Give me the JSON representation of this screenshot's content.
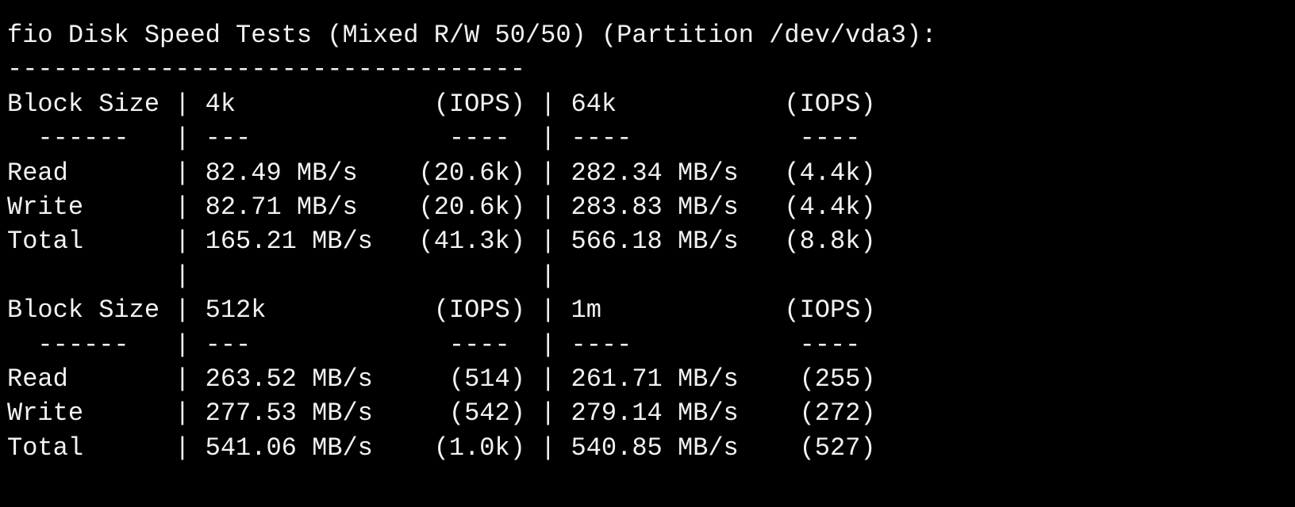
{
  "terminal": {
    "lines": [
      "fio Disk Speed Tests (Mixed R/W 50/50) (Partition /dev/vda3):",
      "----------------------------------",
      "Block Size | 4k             (IOPS) | 64k           (IOPS)",
      "  ------   | ---             ----  | ----           ----",
      "Read       | 82.49 MB/s    (20.6k) | 282.34 MB/s   (4.4k)",
      "Write      | 82.71 MB/s    (20.6k) | 283.83 MB/s   (4.4k)",
      "Total      | 165.21 MB/s   (41.3k) | 566.18 MB/s   (8.8k)",
      "           |                       |",
      "Block Size | 512k           (IOPS) | 1m            (IOPS)",
      "  ------   | ---             ----  | ----           ----",
      "Read       | 263.52 MB/s     (514) | 261.71 MB/s    (255)",
      "Write      | 277.53 MB/s     (542) | 279.14 MB/s    (272)",
      "Total      | 541.06 MB/s    (1.0k) | 540.85 MB/s    (527)"
    ]
  }
}
